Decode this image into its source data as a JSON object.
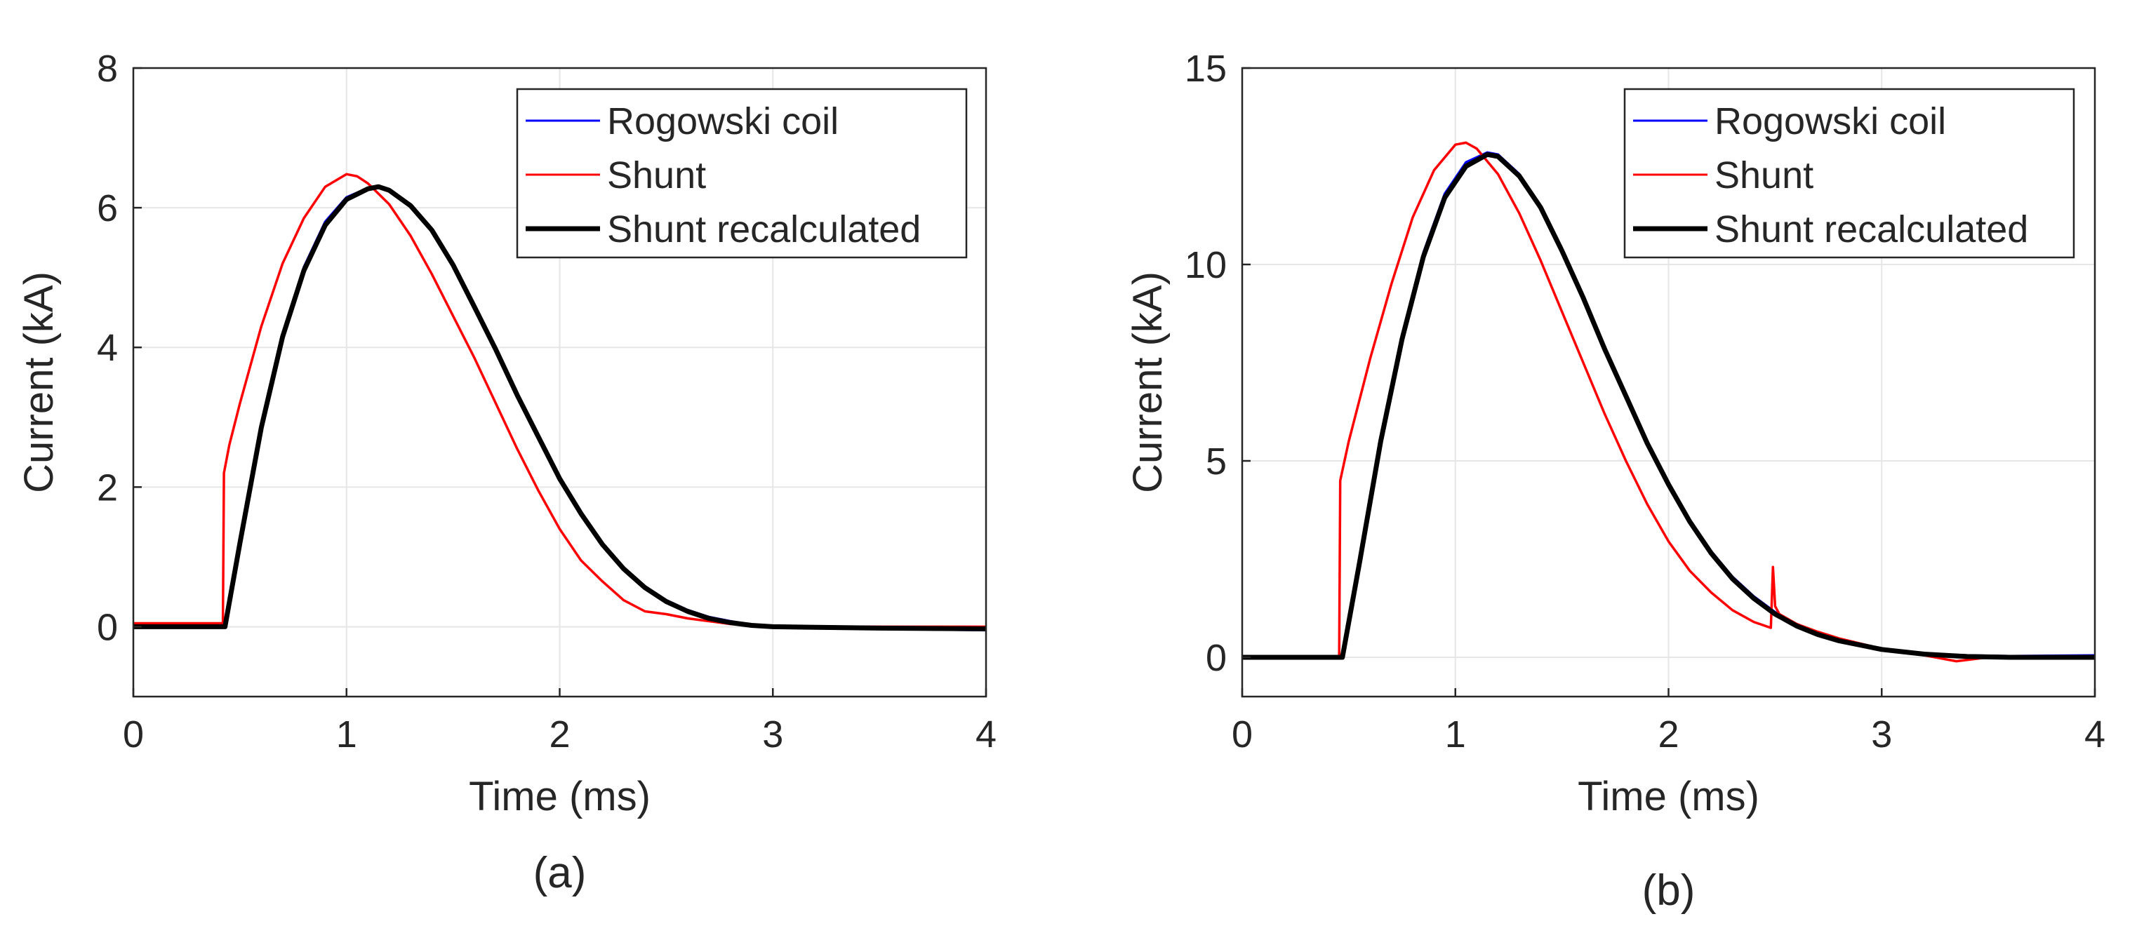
{
  "charts": {
    "colors": {
      "Rogowski coil": "#0000ff",
      "Shunt": "#ff0000",
      "Shunt recalculated": "#000000"
    },
    "chart_data": [
      {
        "type": "line",
        "panel_label": "(a)",
        "xlabel": "Time (ms)",
        "ylabel": "Current (kA)",
        "xlim": [
          0,
          4
        ],
        "ylim": [
          -1,
          8
        ],
        "xticks": [
          0,
          1,
          2,
          3,
          4
        ],
        "yticks": [
          0,
          2,
          4,
          6,
          8
        ],
        "grid": true,
        "legend_position": "top-right",
        "series": [
          {
            "name": "Rogowski coil",
            "x": [
              0,
              0.43,
              0.5,
              0.6,
              0.7,
              0.8,
              0.9,
              1.0,
              1.1,
              1.15,
              1.2,
              1.3,
              1.4,
              1.5,
              1.6,
              1.7,
              1.8,
              1.9,
              2.0,
              2.1,
              2.2,
              2.3,
              2.4,
              2.5,
              2.6,
              2.7,
              2.8,
              2.9,
              3.0,
              3.2,
              3.5,
              4.0
            ],
            "y": [
              0,
              0,
              1.2,
              2.9,
              4.2,
              5.15,
              5.8,
              6.15,
              6.28,
              6.3,
              6.25,
              6.05,
              5.7,
              5.2,
              4.6,
              4.0,
              3.35,
              2.75,
              2.15,
              1.65,
              1.2,
              0.85,
              0.58,
              0.38,
              0.24,
              0.14,
              0.08,
              0.03,
              0,
              0,
              -0.03,
              -0.05
            ]
          },
          {
            "name": "Shunt",
            "x": [
              0,
              0.42,
              0.425,
              0.45,
              0.5,
              0.6,
              0.7,
              0.8,
              0.9,
              1.0,
              1.05,
              1.1,
              1.2,
              1.3,
              1.4,
              1.5,
              1.6,
              1.7,
              1.8,
              1.9,
              2.0,
              2.1,
              2.2,
              2.3,
              2.4,
              2.5,
              2.6,
              2.7,
              2.8,
              2.9,
              3.0,
              3.5,
              4.0
            ],
            "y": [
              0.05,
              0.05,
              2.2,
              2.6,
              3.2,
              4.3,
              5.2,
              5.85,
              6.3,
              6.48,
              6.45,
              6.35,
              6.05,
              5.6,
              5.05,
              4.45,
              3.85,
              3.2,
              2.55,
              1.95,
              1.4,
              0.95,
              0.65,
              0.38,
              0.22,
              0.18,
              0.12,
              0.08,
              0.04,
              0.02,
              0,
              0,
              0
            ]
          },
          {
            "name": "Shunt recalculated",
            "x": [
              0,
              0.43,
              0.5,
              0.6,
              0.7,
              0.8,
              0.9,
              1.0,
              1.1,
              1.15,
              1.2,
              1.3,
              1.4,
              1.5,
              1.6,
              1.7,
              1.8,
              1.9,
              2.0,
              2.1,
              2.2,
              2.3,
              2.4,
              2.5,
              2.6,
              2.7,
              2.8,
              2.9,
              3.0,
              3.5,
              4.0
            ],
            "y": [
              0,
              0,
              1.2,
              2.85,
              4.15,
              5.1,
              5.75,
              6.12,
              6.27,
              6.3,
              6.25,
              6.03,
              5.68,
              5.18,
              4.58,
              3.97,
              3.32,
              2.72,
              2.12,
              1.62,
              1.18,
              0.83,
              0.56,
              0.36,
              0.22,
              0.12,
              0.06,
              0.02,
              0,
              -0.02,
              -0.03
            ]
          }
        ]
      },
      {
        "type": "line",
        "panel_label": "(b)",
        "xlabel": "Time (ms)",
        "ylabel": "Current (kA)",
        "xlim": [
          0,
          4
        ],
        "ylim": [
          -1,
          15
        ],
        "xticks": [
          0,
          1,
          2,
          3,
          4
        ],
        "yticks": [
          0,
          5,
          10,
          15
        ],
        "grid": true,
        "legend_position": "top-right",
        "series": [
          {
            "name": "Rogowski coil",
            "x": [
              0,
              0.47,
              0.55,
              0.65,
              0.75,
              0.85,
              0.95,
              1.05,
              1.15,
              1.2,
              1.3,
              1.4,
              1.5,
              1.6,
              1.7,
              1.8,
              1.9,
              2.0,
              2.1,
              2.2,
              2.3,
              2.4,
              2.5,
              2.6,
              2.7,
              2.8,
              3.0,
              3.2,
              3.4,
              3.6,
              4.0
            ],
            "y": [
              0,
              0,
              2.5,
              5.6,
              8.2,
              10.3,
              11.8,
              12.6,
              12.85,
              12.8,
              12.3,
              11.5,
              10.4,
              9.2,
              7.9,
              6.7,
              5.5,
              4.45,
              3.5,
              2.7,
              2.05,
              1.55,
              1.15,
              0.85,
              0.62,
              0.45,
              0.22,
              0.1,
              0.05,
              0.03,
              0.05
            ]
          },
          {
            "name": "Shunt",
            "x": [
              0,
              0.455,
              0.46,
              0.5,
              0.6,
              0.7,
              0.8,
              0.9,
              1.0,
              1.05,
              1.1,
              1.2,
              1.3,
              1.4,
              1.5,
              1.6,
              1.7,
              1.8,
              1.9,
              2.0,
              2.1,
              2.2,
              2.3,
              2.4,
              2.48,
              2.49,
              2.5,
              2.52,
              2.6,
              2.7,
              2.8,
              3.0,
              3.2,
              3.35,
              3.5,
              4.0
            ],
            "y": [
              0,
              0,
              4.5,
              5.5,
              7.6,
              9.5,
              11.2,
              12.4,
              13.05,
              13.1,
              12.95,
              12.3,
              11.3,
              10.1,
              8.8,
              7.5,
              6.2,
              5.0,
              3.9,
              2.95,
              2.2,
              1.65,
              1.2,
              0.9,
              0.75,
              2.3,
              1.3,
              1.1,
              0.85,
              0.65,
              0.48,
              0.22,
              0.05,
              -0.1,
              0,
              0
            ]
          },
          {
            "name": "Shunt recalculated",
            "x": [
              0,
              0.47,
              0.55,
              0.65,
              0.75,
              0.85,
              0.95,
              1.05,
              1.15,
              1.2,
              1.3,
              1.4,
              1.5,
              1.6,
              1.7,
              1.8,
              1.9,
              2.0,
              2.1,
              2.2,
              2.3,
              2.4,
              2.5,
              2.6,
              2.7,
              2.8,
              3.0,
              3.2,
              3.4,
              3.6,
              4.0
            ],
            "y": [
              0,
              0,
              2.4,
              5.5,
              8.1,
              10.2,
              11.7,
              12.5,
              12.8,
              12.75,
              12.25,
              11.45,
              10.35,
              9.15,
              7.85,
              6.65,
              5.45,
              4.4,
              3.45,
              2.65,
              2.0,
              1.5,
              1.1,
              0.8,
              0.58,
              0.42,
              0.2,
              0.08,
              0.02,
              0,
              0
            ]
          }
        ]
      }
    ]
  }
}
